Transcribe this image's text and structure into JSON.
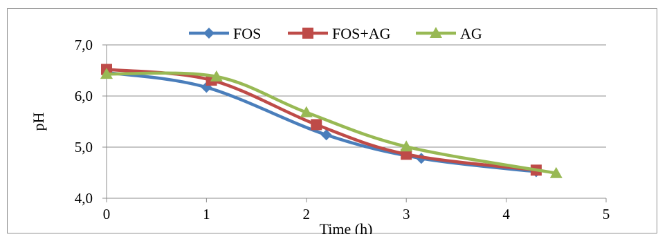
{
  "chart_data": {
    "type": "line",
    "title": "",
    "xlabel": "Time (h)",
    "ylabel": "pH",
    "xlim": [
      0,
      5
    ],
    "ylim": [
      4.0,
      7.0
    ],
    "x_ticks": [
      0,
      1,
      2,
      3,
      4,
      5
    ],
    "x_tick_labels": [
      "0",
      "1",
      "2",
      "3",
      "4",
      "5"
    ],
    "y_ticks": [
      4.0,
      5.0,
      6.0,
      7.0
    ],
    "y_tick_labels": [
      "4,0",
      "5,0",
      "6,0",
      "7,0"
    ],
    "grid": true,
    "legend_position": "top",
    "smooth": true,
    "series": [
      {
        "name": "FOS",
        "color": "#4a7ebb",
        "marker": "diamond",
        "x": [
          0,
          1,
          2.2,
          3.15,
          4.3
        ],
        "y": [
          6.46,
          6.17,
          5.24,
          4.78,
          4.52
        ]
      },
      {
        "name": "FOS+AG",
        "color": "#be4b48",
        "marker": "square",
        "x": [
          0,
          1.05,
          2.1,
          3,
          4.3
        ],
        "y": [
          6.52,
          6.31,
          5.44,
          4.86,
          4.55
        ]
      },
      {
        "name": "AG",
        "color": "#98b954",
        "marker": "triangle",
        "x": [
          0,
          1.1,
          2,
          3,
          4.5
        ],
        "y": [
          6.43,
          6.38,
          5.68,
          5.01,
          4.49
        ]
      }
    ]
  }
}
